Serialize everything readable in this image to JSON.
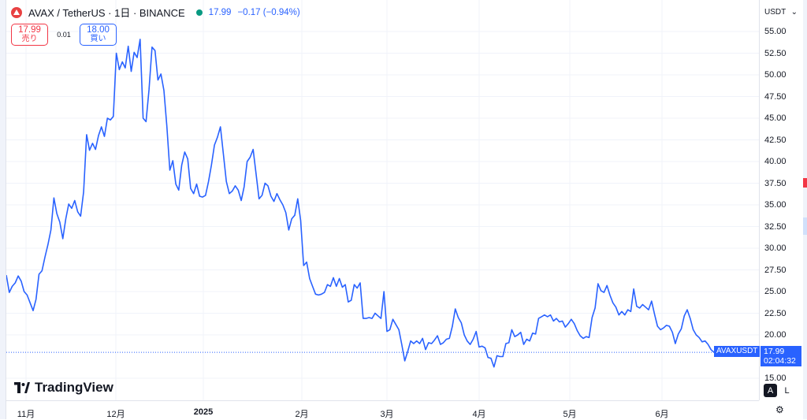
{
  "legend": {
    "symbol": "AVAX / TetherUS · 1日 · BINANCE",
    "status_icon": "market-open-dot",
    "price": "17.99",
    "change": "−0.17 (−0.94%)"
  },
  "trade": {
    "sell_price": "17.99",
    "sell_label": "売り",
    "spread": "0.01",
    "buy_price": "18.00",
    "buy_label": "買い"
  },
  "price_axis": {
    "currency": "USDT",
    "labels": [
      "55.00",
      "52.50",
      "50.00",
      "47.50",
      "45.00",
      "42.50",
      "40.00",
      "37.50",
      "35.00",
      "32.50",
      "30.00",
      "27.50",
      "25.00",
      "22.50",
      "20.00",
      "15.00"
    ],
    "current_price": "17.99",
    "countdown": "02:04:32",
    "series_tag": "AVAXUSDT"
  },
  "time_axis": {
    "labels": [
      "11月",
      "12月",
      "2025",
      "2月",
      "3月",
      "4月",
      "5月",
      "6月"
    ]
  },
  "branding": {
    "logo_text": "TradingView"
  },
  "scale_buttons": {
    "auto": "A",
    "log": "L"
  },
  "colors": {
    "line": "#2962ff",
    "sell": "#f23645",
    "buy": "#2962ff",
    "live": "#089981"
  },
  "chart_data": {
    "type": "line",
    "title": "AVAX / TetherUS · 1日 · BINANCE",
    "xlabel": "",
    "ylabel": "",
    "ylim": [
      15,
      56
    ],
    "grid": true,
    "series": [
      {
        "values": [
          26.9,
          24.9,
          25.6,
          26.0,
          26.8,
          26.2,
          25.0,
          24.6,
          23.7,
          22.8,
          24.1,
          27.0,
          27.4,
          29.0,
          30.4,
          32.1,
          35.8,
          34.0,
          33.0,
          31.1,
          33.4,
          35.1,
          34.6,
          35.5,
          34.2,
          33.7,
          36.5,
          43.1,
          41.3,
          42.1,
          41.4,
          43.0,
          44.0,
          42.9,
          45.0,
          44.8,
          45.2,
          52.5,
          50.6,
          51.5,
          50.8,
          53.3,
          50.4,
          52.6,
          52.0,
          54.1,
          45.0,
          44.6,
          48.3,
          53.2,
          52.8,
          49.4,
          50.1,
          48.2,
          44.1,
          39.0,
          40.1,
          37.4,
          36.7,
          39.6,
          41.1,
          40.3,
          36.9,
          36.3,
          37.4,
          36.0,
          35.9,
          36.1,
          37.7,
          39.6,
          41.9,
          42.8,
          44.0,
          40.9,
          37.7,
          36.3,
          36.6,
          37.2,
          36.7,
          35.5,
          37.1,
          40.0,
          40.5,
          41.4,
          38.6,
          35.7,
          36.1,
          37.5,
          37.2,
          36.0,
          35.4,
          36.3,
          35.6,
          35.0,
          34.1,
          32.1,
          33.4,
          33.8,
          35.7,
          33.2,
          28.0,
          28.4,
          26.5,
          25.6,
          24.7,
          24.6,
          24.7,
          24.9,
          25.8,
          25.6,
          26.6,
          25.6,
          26.5,
          25.5,
          25.8,
          23.8,
          24.0,
          25.8,
          25.4,
          26.0,
          21.9,
          21.9,
          22.0,
          21.9,
          22.5,
          22.2,
          21.9,
          25.0,
          20.4,
          20.6,
          21.8,
          21.2,
          20.6,
          18.9,
          17.0,
          18.1,
          19.3,
          19.0,
          19.3,
          19.0,
          19.6,
          18.3,
          19.1,
          19.0,
          19.4,
          19.9,
          18.9,
          19.1,
          19.5,
          19.6,
          21.0,
          23.0,
          22.0,
          21.4,
          20.0,
          19.3,
          18.9,
          19.5,
          20.4,
          18.6,
          18.7,
          18.5,
          17.4,
          17.3,
          16.3,
          17.6,
          17.5,
          17.5,
          19.0,
          19.1,
          20.6,
          19.8,
          20.0,
          20.3,
          18.9,
          19.5,
          19.3,
          20.2,
          20.1,
          21.9,
          22.1,
          22.3,
          22.1,
          22.3,
          21.6,
          21.9,
          21.5,
          21.6,
          20.9,
          21.3,
          21.8,
          21.3,
          20.5,
          19.9,
          19.6,
          19.8,
          19.7,
          22.0,
          23.1,
          25.9,
          25.1,
          24.9,
          25.7,
          24.6,
          23.7,
          23.2,
          22.3,
          22.7,
          22.3,
          22.9,
          22.7,
          25.3,
          23.3,
          23.1,
          23.5,
          23.2,
          22.9,
          23.9,
          22.4,
          21.0,
          20.6,
          20.8,
          21.1,
          21.0,
          20.3,
          19.0,
          20.1,
          20.7,
          22.2,
          22.9,
          21.9,
          20.6,
          20.0,
          19.7,
          19.2,
          19.3,
          18.9,
          18.3,
          17.99
        ]
      }
    ]
  }
}
